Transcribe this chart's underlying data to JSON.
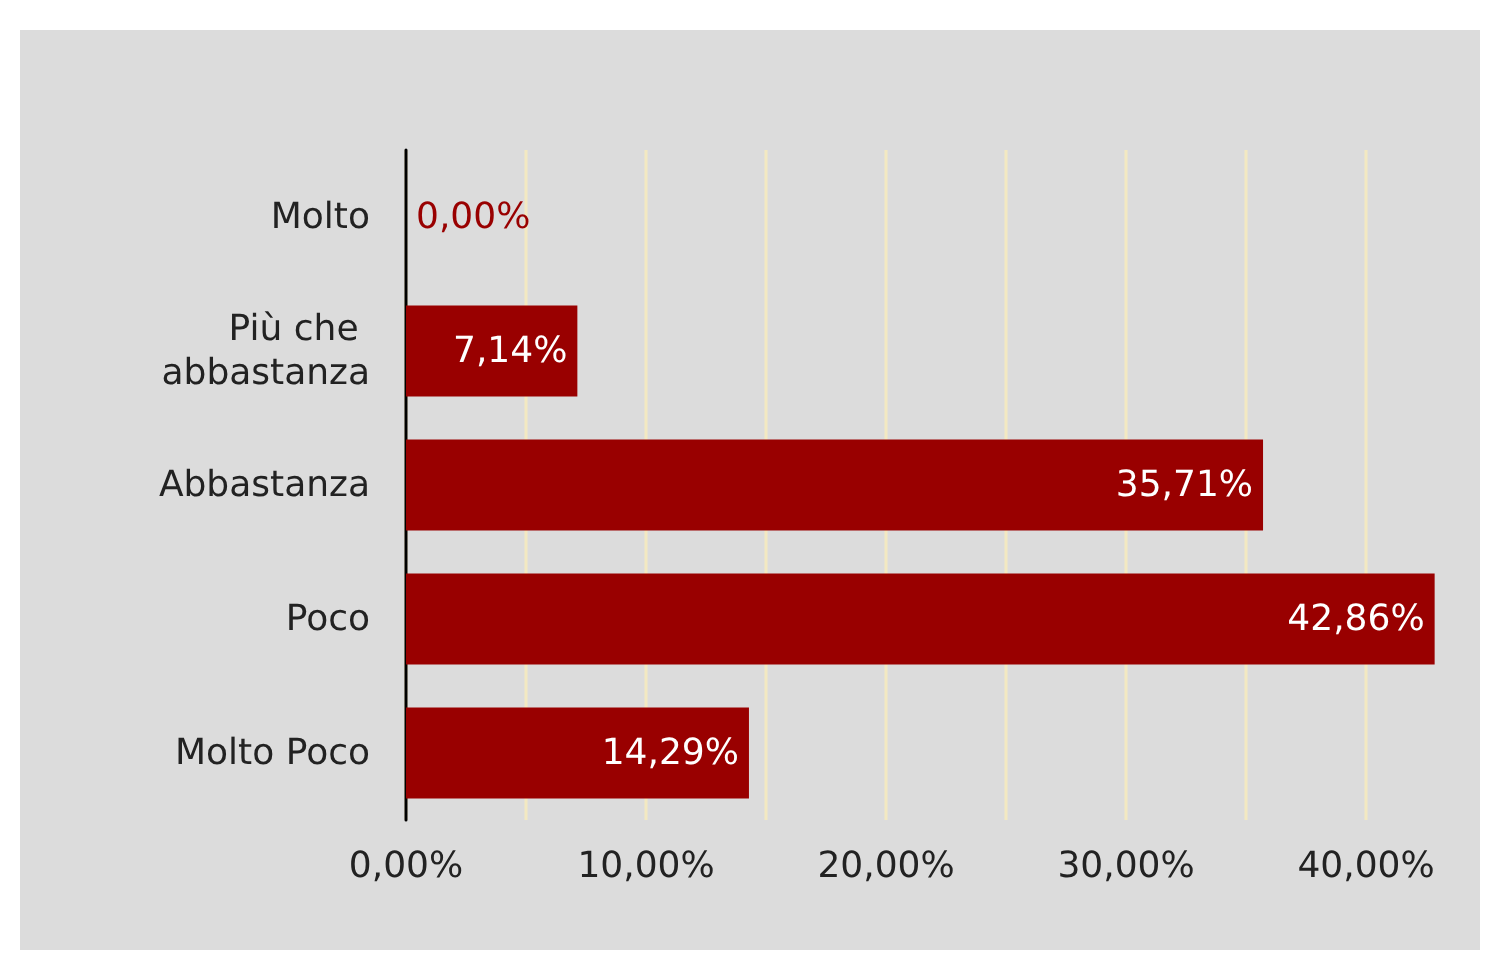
{
  "chart_data": {
    "type": "bar",
    "orientation": "horizontal",
    "categories": [
      "Molto",
      "Più che abbastanza",
      "Abbastanza",
      "Poco",
      "Molto Poco"
    ],
    "values": [
      0,
      7.14,
      35.71,
      42.86,
      14.29
    ],
    "color": "#990000",
    "value_labels": [
      "0,00%",
      "7,14%",
      "35,71%",
      "42,86%",
      "14,29%"
    ],
    "xlim": [
      0,
      43
    ],
    "xticks": [
      {
        "value": 0,
        "label": "0,00%"
      },
      {
        "value": 5,
        "label": null
      },
      {
        "value": 10,
        "label": "10,00%"
      },
      {
        "value": 15,
        "label": null
      },
      {
        "value": 20,
        "label": "20,00%"
      },
      {
        "value": 25,
        "label": null
      },
      {
        "value": 30,
        "label": "30,00%"
      },
      {
        "value": 35,
        "label": null
      },
      {
        "value": 40,
        "label": "40,00%"
      }
    ],
    "grid": "x"
  }
}
